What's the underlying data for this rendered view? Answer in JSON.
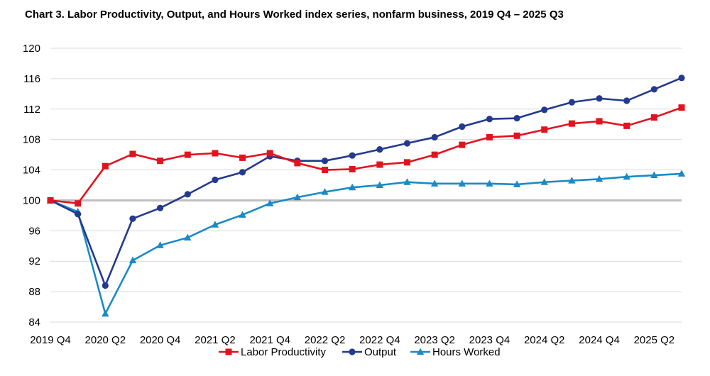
{
  "chart_data": {
    "type": "line",
    "title": "Chart 3. Labor Productivity, Output, and Hours Worked index series, nonfarm business, 2019 Q4 – 2025 Q3",
    "xlabel": "",
    "ylabel": "",
    "ylim": [
      84,
      120
    ],
    "yticks": [
      "84",
      "88",
      "92",
      "96",
      "100",
      "104",
      "108",
      "112",
      "116",
      "120"
    ],
    "reference_line": 100,
    "x": [
      "2019 Q4",
      "2020 Q1",
      "2020 Q2",
      "2020 Q3",
      "2020 Q4",
      "2021 Q1",
      "2021 Q2",
      "2021 Q3",
      "2021 Q4",
      "2022 Q1",
      "2022 Q2",
      "2022 Q3",
      "2022 Q4",
      "2023 Q1",
      "2023 Q2",
      "2023 Q3",
      "2023 Q4",
      "2024 Q1",
      "2024 Q2",
      "2024 Q3",
      "2024 Q4",
      "2025 Q1",
      "2025 Q2",
      "2025 Q3"
    ],
    "x_tick_labels": [
      "2019 Q4",
      "2020 Q2",
      "2020 Q4",
      "2021 Q2",
      "2021 Q4",
      "2022 Q2",
      "2022 Q4",
      "2023 Q2",
      "2023 Q4",
      "2024 Q2",
      "2024 Q4",
      "2025 Q2"
    ],
    "legend_position": "bottom",
    "series": [
      {
        "name": "Labor Productivity",
        "color": "#e3121f",
        "marker": "square",
        "values": [
          100.0,
          99.6,
          104.5,
          106.1,
          105.2,
          106.0,
          106.2,
          105.6,
          106.2,
          104.9,
          104.0,
          104.1,
          104.7,
          105.0,
          106.0,
          107.3,
          108.3,
          108.5,
          109.3,
          110.1,
          110.4,
          109.8,
          110.9,
          112.2
        ]
      },
      {
        "name": "Output",
        "color": "#233a8f",
        "marker": "circle",
        "values": [
          100.0,
          98.2,
          88.8,
          97.6,
          99.0,
          100.8,
          102.7,
          103.7,
          105.8,
          105.2,
          105.2,
          105.9,
          106.7,
          107.5,
          108.3,
          109.7,
          110.7,
          110.8,
          111.9,
          112.9,
          113.4,
          113.1,
          114.6,
          116.1
        ]
      },
      {
        "name": "Hours Worked",
        "color": "#1a8ac6",
        "marker": "triangle",
        "values": [
          100.0,
          98.5,
          85.1,
          92.1,
          94.1,
          95.1,
          96.8,
          98.1,
          99.6,
          100.4,
          101.1,
          101.7,
          102.0,
          102.4,
          102.2,
          102.2,
          102.2,
          102.1,
          102.4,
          102.6,
          102.8,
          103.1,
          103.3,
          103.5
        ]
      }
    ]
  }
}
